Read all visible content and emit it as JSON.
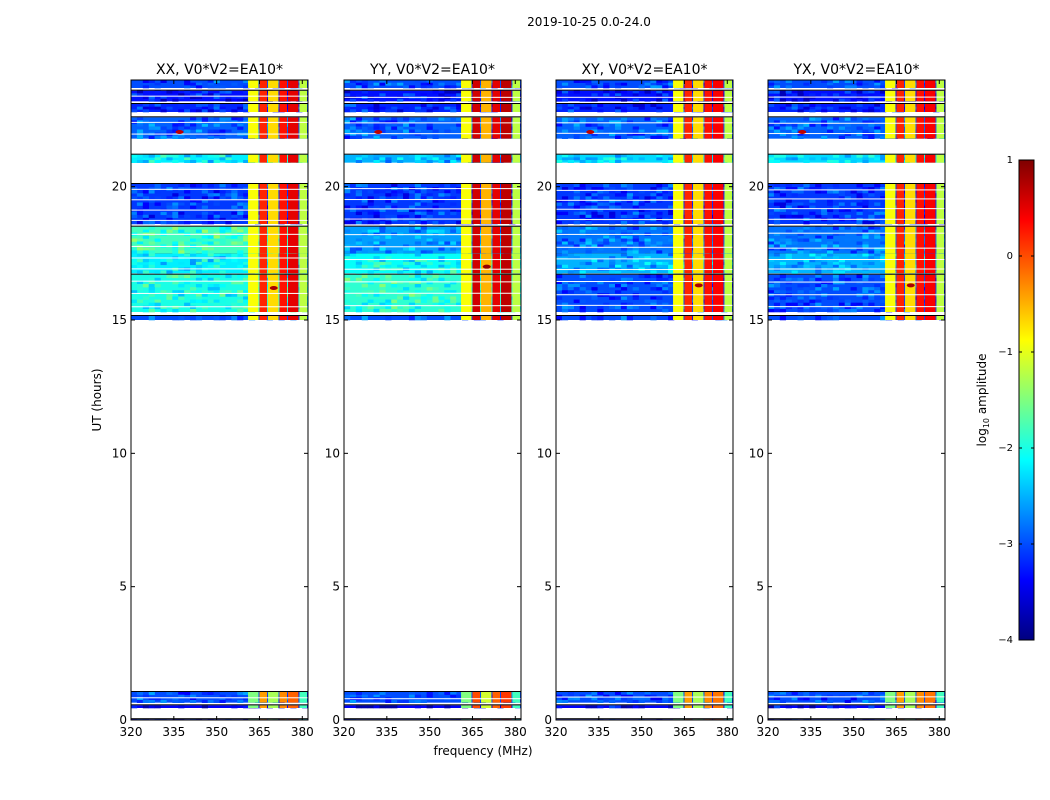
{
  "chart_data": [
    {
      "type": "heatmap",
      "title": "XX, V0*V2=EA10*",
      "xlabel": "frequency (MHz)",
      "ylabel": "UT (hours)",
      "xlim": [
        320,
        382
      ],
      "ylim": [
        0,
        24
      ],
      "xticks": [
        "320",
        "335",
        "350",
        "365",
        "380"
      ],
      "yticks": [
        "0",
        "5",
        "10",
        "15",
        "20"
      ],
      "background_level": -2.6,
      "bands": [
        {
          "t0": 0.0,
          "t1": 0.03,
          "level": -3.3
        },
        {
          "t0": 0.45,
          "t1": 0.55,
          "level": -3.4
        },
        {
          "t0": 0.65,
          "t1": 1.05,
          "level": -3.0
        },
        {
          "t0": 15.0,
          "t1": 15.15,
          "level": -3.0
        },
        {
          "t0": 15.3,
          "t1": 16.7,
          "level": -2.0
        },
        {
          "t0": 16.75,
          "t1": 17.5,
          "level": -2.2
        },
        {
          "t0": 17.5,
          "t1": 18.5,
          "level": -1.8
        },
        {
          "t0": 18.6,
          "t1": 20.1,
          "level": -3.1
        },
        {
          "t0": 20.9,
          "t1": 21.2,
          "level": -2.2
        },
        {
          "t0": 21.8,
          "t1": 22.6,
          "level": -2.9
        },
        {
          "t0": 22.8,
          "t1": 23.1,
          "level": -3.2
        },
        {
          "t0": 23.2,
          "t1": 23.6,
          "level": -3.3
        },
        {
          "t0": 23.7,
          "t1": 24.0,
          "level": -3.0
        }
      ],
      "rfi_columns": [
        {
          "f0": 361,
          "f1": 365,
          "level": -0.9
        },
        {
          "f0": 365,
          "f1": 368,
          "level": 0.2
        },
        {
          "f0": 368,
          "f1": 372,
          "level": -0.7
        },
        {
          "f0": 372,
          "f1": 375,
          "level": 0.3
        },
        {
          "f0": 375,
          "f1": 379,
          "level": 0.5
        },
        {
          "f0": 379,
          "f1": 382,
          "level": -1.2
        }
      ],
      "hot_spots": [
        {
          "t": 22.05,
          "f": 337,
          "level": 0.7
        },
        {
          "t": 16.2,
          "f": 370,
          "level": 0.8
        }
      ]
    },
    {
      "type": "heatmap",
      "title": "YY, V0*V2=EA10*",
      "xlabel": "frequency (MHz)",
      "ylabel": "",
      "xlim": [
        320,
        382
      ],
      "ylim": [
        0,
        24
      ],
      "xticks": [
        "320",
        "335",
        "350",
        "365",
        "380"
      ],
      "yticks": [
        "0",
        "5",
        "10",
        "15",
        "20"
      ],
      "background_level": -2.5,
      "bands": [
        {
          "t0": 0.0,
          "t1": 0.03,
          "level": -3.3
        },
        {
          "t0": 0.45,
          "t1": 0.55,
          "level": -3.4
        },
        {
          "t0": 0.65,
          "t1": 1.05,
          "level": -3.0
        },
        {
          "t0": 15.0,
          "t1": 15.15,
          "level": -3.0
        },
        {
          "t0": 15.3,
          "t1": 16.7,
          "level": -1.9
        },
        {
          "t0": 16.75,
          "t1": 17.5,
          "level": -2.1
        },
        {
          "t0": 17.5,
          "t1": 18.5,
          "level": -2.6
        },
        {
          "t0": 18.6,
          "t1": 20.1,
          "level": -3.1
        },
        {
          "t0": 20.9,
          "t1": 21.2,
          "level": -2.5
        },
        {
          "t0": 21.8,
          "t1": 22.6,
          "level": -2.9
        },
        {
          "t0": 22.8,
          "t1": 23.1,
          "level": -3.2
        },
        {
          "t0": 23.2,
          "t1": 23.6,
          "level": -3.3
        },
        {
          "t0": 23.7,
          "t1": 24.0,
          "level": -3.0
        }
      ],
      "rfi_columns": [
        {
          "f0": 361,
          "f1": 365,
          "level": -0.9
        },
        {
          "f0": 365,
          "f1": 368,
          "level": 0.6
        },
        {
          "f0": 368,
          "f1": 372,
          "level": -0.5
        },
        {
          "f0": 372,
          "f1": 375,
          "level": 0.5
        },
        {
          "f0": 375,
          "f1": 379,
          "level": 0.7
        },
        {
          "f0": 379,
          "f1": 382,
          "level": -1.2
        }
      ],
      "hot_spots": [
        {
          "t": 22.05,
          "f": 332,
          "level": 0.7
        },
        {
          "t": 17.0,
          "f": 370,
          "level": 0.9
        }
      ]
    },
    {
      "type": "heatmap",
      "title": "XY, V0*V2=EA10*",
      "xlabel": "frequency (MHz)",
      "ylabel": "",
      "xlim": [
        320,
        382
      ],
      "ylim": [
        0,
        24
      ],
      "xticks": [
        "320",
        "335",
        "350",
        "365",
        "380"
      ],
      "yticks": [
        "0",
        "5",
        "10",
        "15",
        "20"
      ],
      "background_level": -2.8,
      "bands": [
        {
          "t0": 0.0,
          "t1": 0.03,
          "level": -3.3
        },
        {
          "t0": 0.45,
          "t1": 0.55,
          "level": -3.4
        },
        {
          "t0": 0.65,
          "t1": 1.05,
          "level": -3.0
        },
        {
          "t0": 15.0,
          "t1": 15.15,
          "level": -3.0
        },
        {
          "t0": 15.3,
          "t1": 16.7,
          "level": -3.0
        },
        {
          "t0": 16.75,
          "t1": 17.5,
          "level": -2.5
        },
        {
          "t0": 17.5,
          "t1": 18.5,
          "level": -2.8
        },
        {
          "t0": 18.6,
          "t1": 20.1,
          "level": -3.1
        },
        {
          "t0": 20.9,
          "t1": 21.2,
          "level": -2.3
        },
        {
          "t0": 21.8,
          "t1": 22.6,
          "level": -2.9
        },
        {
          "t0": 22.8,
          "t1": 23.1,
          "level": -3.2
        },
        {
          "t0": 23.2,
          "t1": 23.6,
          "level": -3.3
        },
        {
          "t0": 23.7,
          "t1": 24.0,
          "level": -3.0
        }
      ],
      "rfi_columns": [
        {
          "f0": 361,
          "f1": 365,
          "level": -0.9
        },
        {
          "f0": 365,
          "f1": 368,
          "level": 0.2
        },
        {
          "f0": 368,
          "f1": 372,
          "level": -0.7
        },
        {
          "f0": 372,
          "f1": 375,
          "level": 0.3
        },
        {
          "f0": 375,
          "f1": 379,
          "level": 0.4
        },
        {
          "f0": 379,
          "f1": 382,
          "level": -1.2
        }
      ],
      "hot_spots": [
        {
          "t": 22.05,
          "f": 332,
          "level": 0.7
        },
        {
          "t": 16.3,
          "f": 370,
          "level": 0.8
        }
      ]
    },
    {
      "type": "heatmap",
      "title": "YX, V0*V2=EA10*",
      "xlabel": "frequency (MHz)",
      "ylabel": "",
      "xlim": [
        320,
        382
      ],
      "ylim": [
        0,
        24
      ],
      "xticks": [
        "320",
        "335",
        "350",
        "365",
        "380"
      ],
      "yticks": [
        "0",
        "5",
        "10",
        "15",
        "20"
      ],
      "background_level": -2.8,
      "bands": [
        {
          "t0": 0.0,
          "t1": 0.03,
          "level": -3.3
        },
        {
          "t0": 0.45,
          "t1": 0.55,
          "level": -3.4
        },
        {
          "t0": 0.65,
          "t1": 1.05,
          "level": -3.0
        },
        {
          "t0": 15.0,
          "t1": 15.15,
          "level": -3.0
        },
        {
          "t0": 15.3,
          "t1": 16.7,
          "level": -3.0
        },
        {
          "t0": 16.75,
          "t1": 17.5,
          "level": -2.5
        },
        {
          "t0": 17.5,
          "t1": 18.5,
          "level": -2.8
        },
        {
          "t0": 18.6,
          "t1": 20.1,
          "level": -3.1
        },
        {
          "t0": 20.9,
          "t1": 21.2,
          "level": -2.3
        },
        {
          "t0": 21.8,
          "t1": 22.6,
          "level": -2.9
        },
        {
          "t0": 22.8,
          "t1": 23.1,
          "level": -3.2
        },
        {
          "t0": 23.2,
          "t1": 23.6,
          "level": -3.3
        },
        {
          "t0": 23.7,
          "t1": 24.0,
          "level": -3.0
        }
      ],
      "rfi_columns": [
        {
          "f0": 361,
          "f1": 365,
          "level": -0.9
        },
        {
          "f0": 365,
          "f1": 368,
          "level": 0.2
        },
        {
          "f0": 368,
          "f1": 372,
          "level": -0.7
        },
        {
          "f0": 372,
          "f1": 375,
          "level": 0.3
        },
        {
          "f0": 375,
          "f1": 379,
          "level": 0.4
        },
        {
          "f0": 379,
          "f1": 382,
          "level": -1.2
        }
      ],
      "hot_spots": [
        {
          "t": 22.05,
          "f": 332,
          "level": 0.7
        },
        {
          "t": 16.3,
          "f": 370,
          "level": 0.8
        }
      ]
    }
  ],
  "figure": {
    "suptitle": "2019-10-25 0.0-24.0",
    "xlabel": "frequency (MHz)",
    "ylabel": "UT (hours)"
  },
  "colorbar": {
    "label": "log10 amplitude",
    "label_main": "log",
    "label_sub": "10",
    "label_rest": " amplitude",
    "min": -4,
    "max": 1,
    "ticks": [
      "1",
      "0",
      "−1",
      "−2",
      "−3",
      "−4"
    ],
    "tick_values": [
      1,
      0,
      -1,
      -2,
      -3,
      -4
    ],
    "colors": [
      "#00007f",
      "#0000ff",
      "#007fff",
      "#00ffff",
      "#7fff7f",
      "#ffff00",
      "#ff7f00",
      "#ff0000",
      "#7f0000"
    ]
  }
}
